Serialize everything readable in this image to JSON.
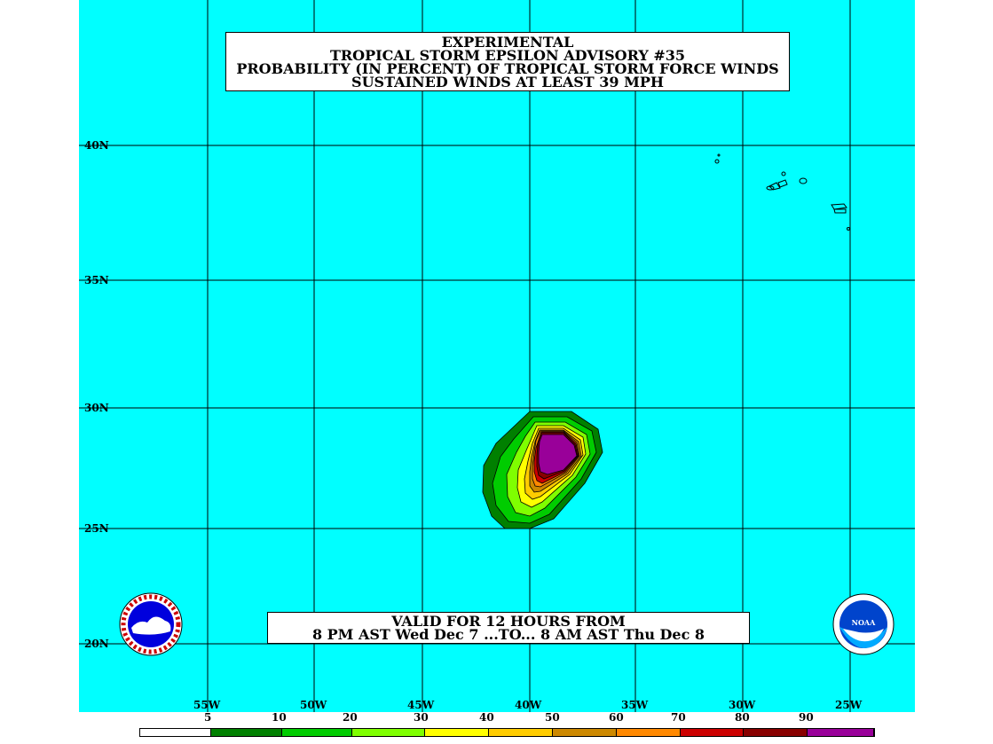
{
  "title": {
    "line1": "EXPERIMENTAL",
    "line2": "TROPICAL STORM EPSILON ADVISORY #35",
    "line3": "PROBABILITY (IN PERCENT) OF TROPICAL STORM FORCE WINDS",
    "line4": "SUSTAINED WINDS AT LEAST 39 MPH"
  },
  "valid": {
    "line1": "VALID FOR 12 HOURS FROM",
    "line2": "8 PM AST Wed Dec 7 ...TO... 8 AM AST Thu Dec 8"
  },
  "lat_labels": [
    "40N",
    "35N",
    "30N",
    "25N",
    "20N"
  ],
  "lon_labels": [
    "55W",
    "50W",
    "45W",
    "40W",
    "35W",
    "30W",
    "25W"
  ],
  "legend": {
    "labels": [
      "5",
      "10",
      "20",
      "30",
      "40",
      "50",
      "60",
      "70",
      "80",
      "90"
    ],
    "colors": [
      "#ffffff",
      "#008000",
      "#00cc00",
      "#7fff00",
      "#ffff00",
      "#ffcc00",
      "#cc8800",
      "#ff8800",
      "#cc0000",
      "#880000",
      "#990099"
    ]
  },
  "logos": {
    "left": "nws-logo-icon",
    "right": "noaa-logo-icon"
  },
  "colors": {
    "ocean": "#00ffff",
    "land_outline": "#000000"
  }
}
